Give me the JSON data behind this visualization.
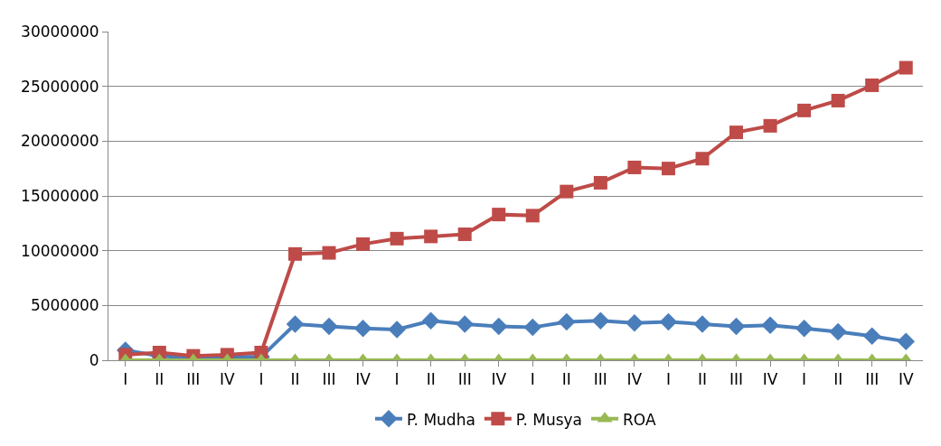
{
  "chart_data": {
    "type": "line",
    "categories": [
      "I",
      "II",
      "III",
      "IV",
      "I",
      "II",
      "III",
      "IV",
      "I",
      "II",
      "III",
      "IV",
      "I",
      "II",
      "III",
      "IV",
      "I",
      "II",
      "III",
      "IV",
      "I",
      "II",
      "III",
      "IV"
    ],
    "series": [
      {
        "name": "P. Mudha",
        "color": "#4a7ebb",
        "marker": "diamond",
        "values": [
          900000,
          400000,
          200000,
          300000,
          300000,
          3300000,
          3100000,
          2900000,
          2800000,
          3600000,
          3300000,
          3100000,
          3000000,
          3500000,
          3600000,
          3400000,
          3500000,
          3300000,
          3100000,
          3200000,
          2900000,
          2600000,
          2200000,
          1700000
        ]
      },
      {
        "name": "P. Musya",
        "color": "#be4b48",
        "marker": "square",
        "values": [
          500000,
          700000,
          400000,
          500000,
          700000,
          9700000,
          9800000,
          10600000,
          11100000,
          11300000,
          11500000,
          13300000,
          13200000,
          15400000,
          16200000,
          17600000,
          17500000,
          18400000,
          20800000,
          21400000,
          22800000,
          23700000,
          25100000,
          26700000
        ]
      },
      {
        "name": "ROA",
        "color": "#98b954",
        "marker": "triangle",
        "values": [
          0,
          0,
          0,
          0,
          0,
          0,
          0,
          0,
          0,
          0,
          0,
          0,
          0,
          0,
          0,
          0,
          0,
          0,
          0,
          0,
          0,
          0,
          0,
          0
        ]
      }
    ],
    "ylim": [
      0,
      30000000
    ],
    "yticks": [
      0,
      5000000,
      10000000,
      15000000,
      20000000,
      25000000,
      30000000
    ],
    "grid": "y",
    "legend": "bottom",
    "line_style": "solid"
  }
}
